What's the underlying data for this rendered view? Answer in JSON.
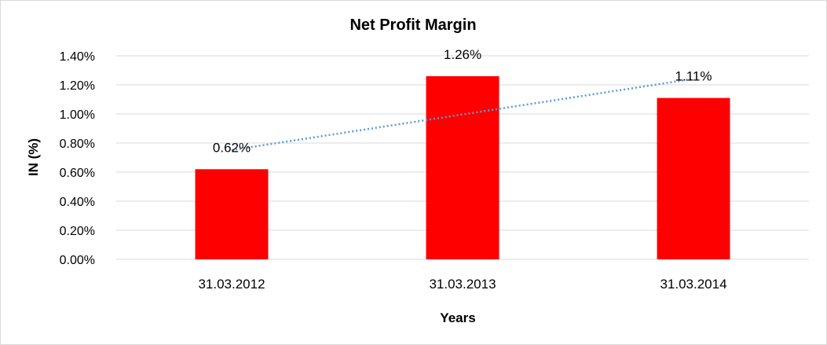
{
  "chart_data": {
    "type": "bar",
    "title": "Net Profit Margin",
    "xlabel": "Years",
    "ylabel": "IN (%)",
    "categories": [
      "31.03.2012",
      "31.03.2013",
      "31.03.2014"
    ],
    "values": [
      0.62,
      1.26,
      1.11
    ],
    "data_labels": [
      "0.62%",
      "1.26%",
      "1.11%"
    ],
    "ylim": [
      0,
      1.4
    ],
    "yticks": [
      0,
      0.2,
      0.4,
      0.6,
      0.8,
      1.0,
      1.2,
      1.4
    ],
    "ytick_labels": [
      "0.00%",
      "0.20%",
      "0.40%",
      "0.60%",
      "0.80%",
      "1.00%",
      "1.20%",
      "1.40%"
    ],
    "grid": true,
    "trendline": "linear",
    "colors": {
      "bar": "#ff0000",
      "trendline": "#5b9bd5",
      "grid": "#d9d9d9"
    }
  }
}
